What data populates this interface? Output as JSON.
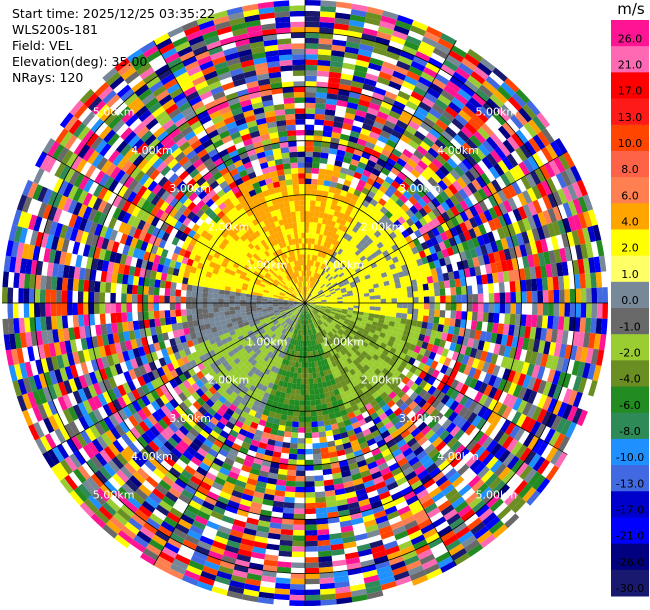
{
  "header": {
    "start_time": "Start time: 2025/12/25 03:35:22",
    "instrument": "WLS200s-181",
    "field": "Field: VEL",
    "elevation": "Elevation(deg): 35.00",
    "nrays": "NRays: 120"
  },
  "colorbar": {
    "unit": "m/s",
    "ticks": [
      "26.0",
      "21.0",
      "17.0",
      "13.0",
      "10.0",
      "8.0",
      "6.0",
      "4.0",
      "2.0",
      "1.0",
      "0.0",
      "-1.0",
      "-2.0",
      "-4.0",
      "-6.0",
      "-8.0",
      "-10.0",
      "-13.0",
      "-17.0",
      "-21.0",
      "-26.0",
      "-30.0"
    ],
    "colors": [
      "#ff1493",
      "#ff69b4",
      "#ff0000",
      "#ff1a1a",
      "#ff4500",
      "#ff6347",
      "#ff7f50",
      "#ffa500",
      "#ffff00",
      "#ffff66",
      "#778899",
      "#696969",
      "#9acd32",
      "#6b8e23",
      "#228b22",
      "#2e8b57",
      "#1e90ff",
      "#4169e1",
      "#0000cd",
      "#0000ff",
      "#000080",
      "#191970"
    ]
  },
  "chart_data": {
    "type": "ppi",
    "field": "VEL",
    "elevation_deg": 35.0,
    "nrays": 120,
    "max_range_km": 5.6,
    "range_rings_km": [
      1,
      2,
      3,
      4,
      5
    ],
    "ring_labels": [
      "1.00km",
      "2.00km",
      "3.00km",
      "4.00km",
      "5.00km"
    ],
    "spoke_spacing_deg": 30,
    "clear_region_max_km": 2.2,
    "quadrant_velocity": {
      "north_west": "4.0 to 6.0",
      "north_east": "2.0 to 4.0",
      "south_west": "-1.0 to 0.0",
      "south_east": "-6.0 to -2.0"
    }
  }
}
